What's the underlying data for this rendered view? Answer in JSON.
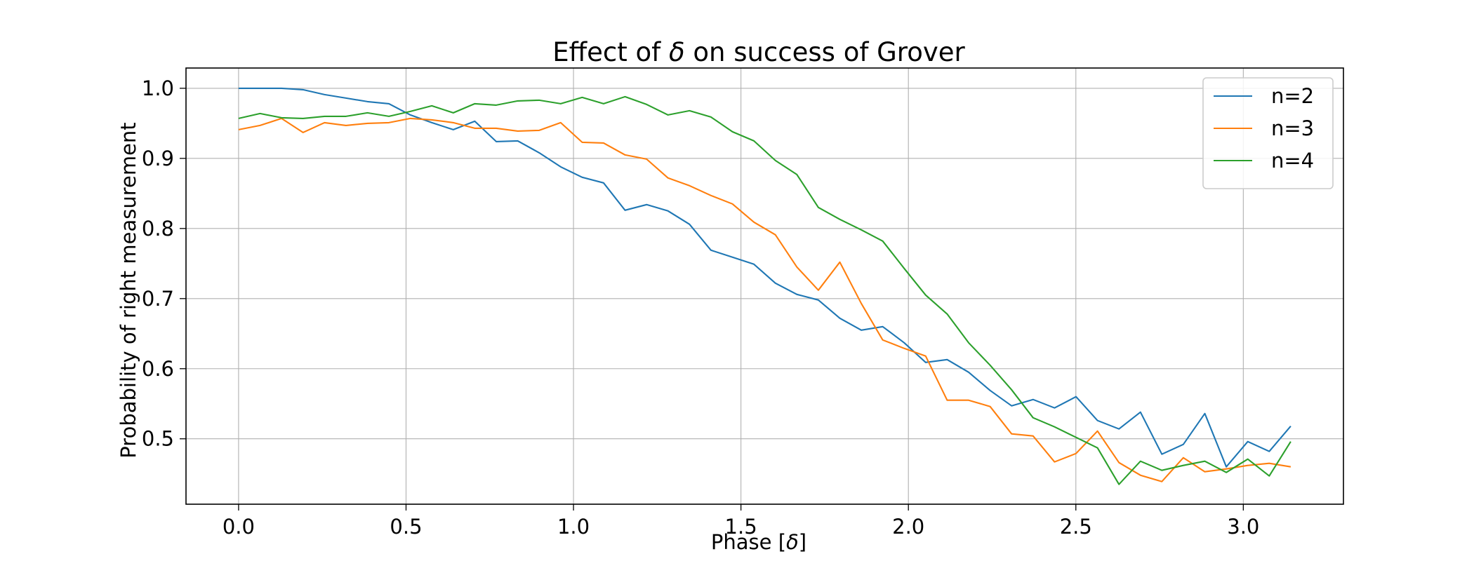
{
  "chart_data": {
    "type": "line",
    "title_prefix": "Effect of ",
    "title_symbol": "δ",
    "title_suffix": " on success of Grover",
    "title": "Effect of δ on success of Grover",
    "xlabel_prefix": "Phase [",
    "xlabel_symbol": "δ",
    "xlabel_suffix": "]",
    "xlabel": "Phase [δ]",
    "ylabel": "Probability of right measurement",
    "xlim": [
      -0.157,
      3.299
    ],
    "ylim": [
      0.4067,
      1.0289
    ],
    "xticks": [
      0.0,
      0.5,
      1.0,
      1.5,
      2.0,
      2.5,
      3.0
    ],
    "xtick_labels": [
      "0.0",
      "0.5",
      "1.0",
      "1.5",
      "2.0",
      "2.5",
      "3.0"
    ],
    "yticks": [
      0.5,
      0.6,
      0.7,
      0.8,
      0.9,
      1.0
    ],
    "ytick_labels": [
      "0.5",
      "0.6",
      "0.7",
      "0.8",
      "0.9",
      "1.0"
    ],
    "grid": true,
    "legend_position": "top-right",
    "x": [
      0.0,
      0.0641,
      0.1282,
      0.1923,
      0.2565,
      0.3206,
      0.3847,
      0.4488,
      0.5129,
      0.577,
      0.6411,
      0.7053,
      0.7694,
      0.8335,
      0.8976,
      0.9617,
      1.0258,
      1.0899,
      1.154,
      1.2182,
      1.2823,
      1.3464,
      1.4105,
      1.4746,
      1.5387,
      1.6028,
      1.667,
      1.7311,
      1.7952,
      1.8593,
      1.9234,
      1.9875,
      2.0516,
      2.1158,
      2.1799,
      2.244,
      2.3081,
      2.3722,
      2.4363,
      2.5004,
      2.5646,
      2.6287,
      2.6928,
      2.7569,
      2.821,
      2.8851,
      2.9492,
      3.0133,
      3.0775,
      3.1416
    ],
    "series": [
      {
        "name": "n=2",
        "color": "#1f77b4",
        "values": [
          1.0,
          1.0,
          1.0,
          0.998,
          0.991,
          0.986,
          0.981,
          0.978,
          0.962,
          0.951,
          0.941,
          0.953,
          0.924,
          0.925,
          0.908,
          0.888,
          0.873,
          0.865,
          0.826,
          0.834,
          0.825,
          0.806,
          0.769,
          0.759,
          0.749,
          0.722,
          0.706,
          0.698,
          0.672,
          0.655,
          0.66,
          0.637,
          0.609,
          0.613,
          0.595,
          0.569,
          0.547,
          0.556,
          0.544,
          0.56,
          0.526,
          0.514,
          0.538,
          0.478,
          0.492,
          0.536,
          0.46,
          0.496,
          0.482,
          0.518
        ]
      },
      {
        "name": "n=3",
        "color": "#ff7f0e",
        "values": [
          0.941,
          0.947,
          0.957,
          0.937,
          0.951,
          0.947,
          0.95,
          0.951,
          0.957,
          0.955,
          0.951,
          0.943,
          0.943,
          0.939,
          0.94,
          0.951,
          0.923,
          0.922,
          0.905,
          0.899,
          0.872,
          0.861,
          0.847,
          0.835,
          0.809,
          0.791,
          0.745,
          0.712,
          0.752,
          0.693,
          0.641,
          0.629,
          0.618,
          0.555,
          0.555,
          0.546,
          0.507,
          0.504,
          0.467,
          0.479,
          0.511,
          0.466,
          0.448,
          0.439,
          0.473,
          0.453,
          0.457,
          0.462,
          0.465,
          0.46
        ]
      },
      {
        "name": "n=4",
        "color": "#2ca02c",
        "values": [
          0.957,
          0.964,
          0.958,
          0.957,
          0.96,
          0.96,
          0.965,
          0.96,
          0.967,
          0.975,
          0.965,
          0.978,
          0.976,
          0.982,
          0.983,
          0.978,
          0.987,
          0.978,
          0.988,
          0.977,
          0.962,
          0.968,
          0.959,
          0.938,
          0.925,
          0.897,
          0.877,
          0.83,
          0.813,
          0.798,
          0.782,
          0.743,
          0.705,
          0.678,
          0.637,
          0.605,
          0.57,
          0.53,
          0.517,
          0.502,
          0.487,
          0.435,
          0.468,
          0.455,
          0.462,
          0.468,
          0.452,
          0.471,
          0.447,
          0.496
        ]
      }
    ]
  }
}
